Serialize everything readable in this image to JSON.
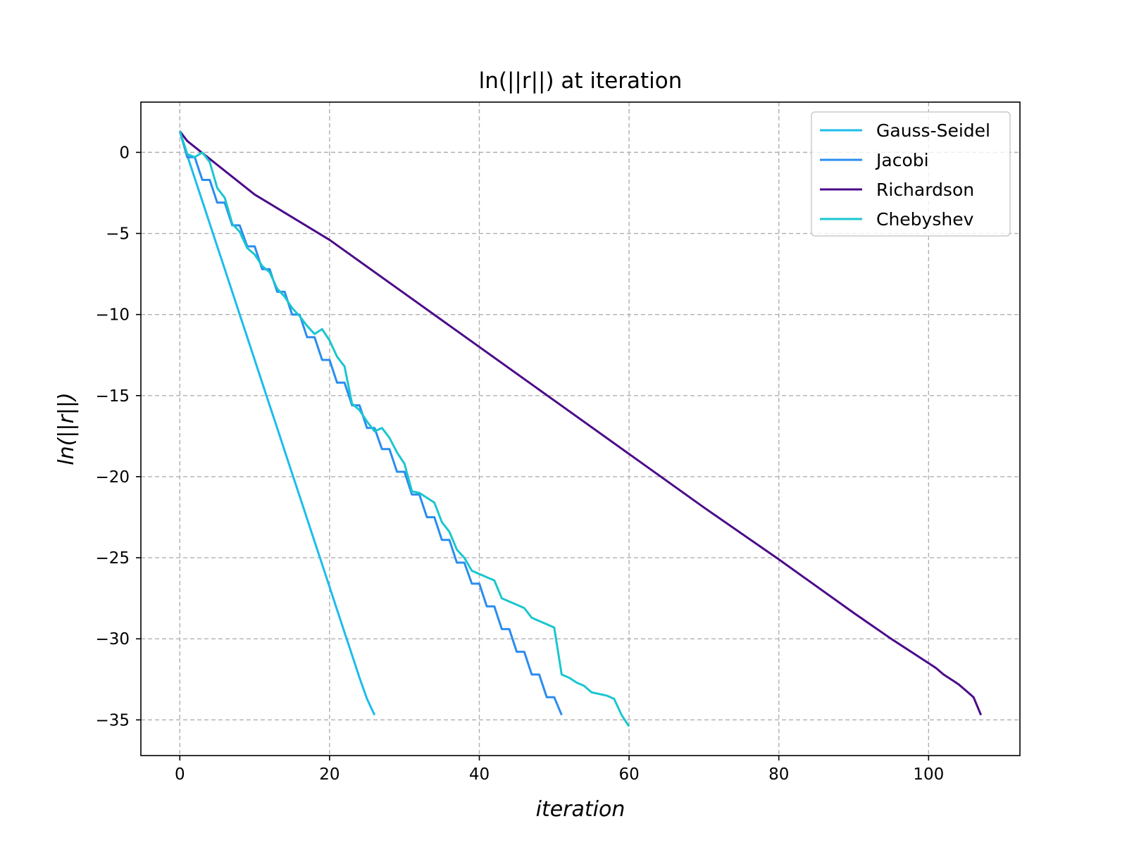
{
  "chart_data": {
    "type": "line",
    "title": "ln(||r||) at iteration",
    "xlabel": "iteration",
    "ylabel": "ln(||r||)",
    "xlim": [
      -5.2,
      112.2
    ],
    "ylim": [
      -37.2,
      3.1
    ],
    "xticks": [
      0,
      20,
      40,
      60,
      80,
      100
    ],
    "yticks": [
      0,
      -5,
      -10,
      -15,
      -20,
      -25,
      -30,
      -35
    ],
    "xtick_labels": [
      "0",
      "20",
      "40",
      "60",
      "80",
      "100"
    ],
    "ytick_labels": [
      "0",
      "−5",
      "−10",
      "−15",
      "−20",
      "−25",
      "−30",
      "−35"
    ],
    "grid": true,
    "legend_position": "top-right",
    "series": [
      {
        "name": "Gauss-Seidel",
        "color": "#1cbcec",
        "x": [
          0,
          1,
          2,
          3,
          4,
          5,
          6,
          7,
          8,
          9,
          10,
          11,
          12,
          13,
          14,
          15,
          16,
          17,
          18,
          19,
          20,
          21,
          22,
          23,
          24,
          25,
          26
        ],
        "y": [
          1.3,
          -0.2,
          -1.6,
          -3.0,
          -4.4,
          -5.8,
          -7.2,
          -8.6,
          -10.0,
          -11.4,
          -12.8,
          -14.2,
          -15.6,
          -17.0,
          -18.4,
          -19.8,
          -21.2,
          -22.6,
          -24.0,
          -25.4,
          -26.8,
          -28.2,
          -29.6,
          -31.0,
          -32.4,
          -33.7,
          -34.7
        ]
      },
      {
        "name": "Jacobi",
        "color": "#2a8cf0",
        "x": [
          0,
          1,
          2,
          3,
          4,
          5,
          6,
          7,
          8,
          9,
          10,
          11,
          12,
          13,
          14,
          15,
          16,
          17,
          18,
          19,
          20,
          21,
          22,
          23,
          24,
          25,
          26,
          27,
          28,
          29,
          30,
          31,
          32,
          33,
          34,
          35,
          36,
          37,
          38,
          39,
          40,
          41,
          42,
          43,
          44,
          45,
          46,
          47,
          48,
          49,
          50,
          51
        ],
        "y": [
          1.3,
          -0.3,
          -0.3,
          -1.7,
          -1.7,
          -3.1,
          -3.1,
          -4.5,
          -4.5,
          -5.8,
          -5.8,
          -7.2,
          -7.2,
          -8.6,
          -8.6,
          -10.0,
          -10.0,
          -11.4,
          -11.4,
          -12.8,
          -12.8,
          -14.2,
          -14.2,
          -15.6,
          -15.6,
          -17.0,
          -17.0,
          -18.3,
          -18.3,
          -19.7,
          -19.7,
          -21.1,
          -21.1,
          -22.5,
          -22.5,
          -23.9,
          -23.9,
          -25.3,
          -25.3,
          -26.6,
          -26.6,
          -28.0,
          -28.0,
          -29.4,
          -29.4,
          -30.8,
          -30.8,
          -32.2,
          -32.2,
          -33.6,
          -33.6,
          -34.7
        ]
      },
      {
        "name": "Richardson",
        "color": "#4b0a8a",
        "x": [
          0,
          1,
          10,
          20,
          30,
          40,
          50,
          60,
          70,
          80,
          90,
          95,
          100,
          101,
          102,
          103,
          104,
          105,
          106,
          107
        ],
        "y": [
          1.3,
          0.7,
          -2.6,
          -5.4,
          -8.7,
          -12.0,
          -15.3,
          -18.6,
          -21.9,
          -25.1,
          -28.4,
          -30.0,
          -31.5,
          -31.8,
          -32.2,
          -32.5,
          -32.8,
          -33.2,
          -33.6,
          -34.7
        ]
      },
      {
        "name": "Chebyshev",
        "color": "#1ac6cf",
        "x": [
          0,
          1,
          2,
          3,
          4,
          5,
          6,
          7,
          8,
          9,
          10,
          11,
          12,
          13,
          14,
          15,
          16,
          17,
          18,
          19,
          20,
          21,
          22,
          23,
          24,
          25,
          26,
          27,
          28,
          29,
          30,
          31,
          32,
          33,
          34,
          35,
          36,
          37,
          38,
          39,
          40,
          41,
          42,
          43,
          44,
          45,
          46,
          47,
          48,
          49,
          50,
          51,
          52,
          53,
          54,
          55,
          56,
          57,
          58,
          59,
          60
        ],
        "y": [
          1.3,
          -0.1,
          -0.3,
          0.0,
          -0.6,
          -2.2,
          -2.8,
          -4.4,
          -4.9,
          -5.9,
          -6.3,
          -7.0,
          -7.4,
          -8.4,
          -8.9,
          -9.6,
          -10.1,
          -10.7,
          -11.2,
          -10.9,
          -11.6,
          -12.6,
          -13.2,
          -15.5,
          -15.9,
          -16.6,
          -17.2,
          -17.0,
          -17.6,
          -18.5,
          -19.2,
          -20.9,
          -21.0,
          -21.3,
          -21.6,
          -22.8,
          -23.4,
          -24.5,
          -25.0,
          -25.8,
          -26.0,
          -26.2,
          -26.4,
          -27.5,
          -27.7,
          -27.9,
          -28.1,
          -28.7,
          -28.9,
          -29.1,
          -29.3,
          -32.2,
          -32.4,
          -32.7,
          -32.9,
          -33.3,
          -33.4,
          -33.5,
          -33.7,
          -34.7,
          -35.4
        ]
      }
    ]
  }
}
